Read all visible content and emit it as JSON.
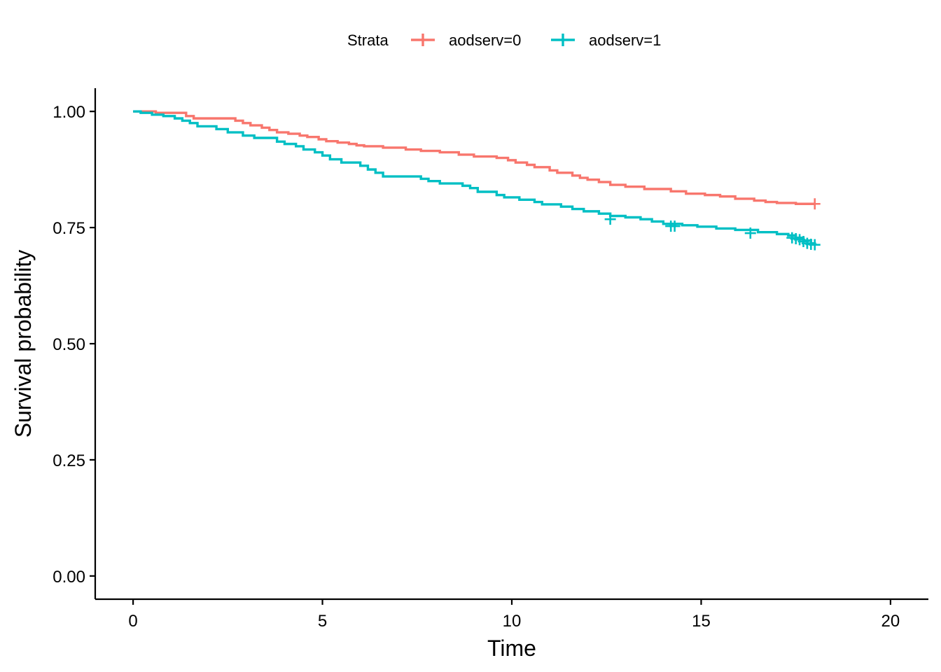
{
  "chart_data": {
    "type": "line",
    "step": true,
    "xlabel": "Time",
    "ylabel": "Survival probability",
    "xlim": [
      -1,
      21
    ],
    "ylim": [
      -0.05,
      1.05
    ],
    "xticks": [
      0,
      5,
      10,
      15,
      20
    ],
    "yticks": [
      0.0,
      0.25,
      0.5,
      0.75,
      1.0
    ],
    "xtick_labels": [
      "0",
      "5",
      "10",
      "15",
      "20"
    ],
    "ytick_labels": [
      "0.00",
      "0.25",
      "0.50",
      "0.75",
      "1.00"
    ],
    "grid": false,
    "legend": {
      "title": "Strata",
      "position": "top"
    },
    "series": [
      {
        "name": "aodserv=0",
        "color": "#F8766D",
        "x": [
          0,
          0.6,
          1.4,
          1.6,
          2.7,
          2.9,
          3.1,
          3.4,
          3.6,
          3.8,
          4.1,
          4.4,
          4.6,
          4.9,
          5.1,
          5.4,
          5.7,
          5.9,
          6.1,
          6.6,
          7.2,
          7.6,
          8.1,
          8.6,
          9.0,
          9.6,
          9.9,
          10.1,
          10.4,
          10.6,
          11.0,
          11.2,
          11.6,
          11.8,
          12.0,
          12.3,
          12.6,
          13.0,
          13.5,
          14.2,
          14.6,
          15.1,
          15.5,
          15.9,
          16.4,
          16.7,
          17.0,
          17.5,
          18.0
        ],
        "y": [
          1.0,
          0.997,
          0.99,
          0.985,
          0.98,
          0.975,
          0.97,
          0.965,
          0.96,
          0.955,
          0.952,
          0.948,
          0.945,
          0.94,
          0.936,
          0.933,
          0.93,
          0.927,
          0.925,
          0.922,
          0.918,
          0.915,
          0.912,
          0.907,
          0.903,
          0.9,
          0.895,
          0.89,
          0.885,
          0.88,
          0.873,
          0.868,
          0.862,
          0.857,
          0.853,
          0.848,
          0.842,
          0.838,
          0.833,
          0.828,
          0.823,
          0.82,
          0.817,
          0.812,
          0.808,
          0.805,
          0.803,
          0.801,
          0.801
        ],
        "censored": [
          [
            18.0,
            0.801
          ]
        ]
      },
      {
        "name": "aodserv=1",
        "color": "#00BFC4",
        "x": [
          0,
          0.2,
          0.5,
          0.8,
          1.1,
          1.3,
          1.5,
          1.7,
          2.2,
          2.5,
          2.9,
          3.2,
          3.8,
          4.0,
          4.3,
          4.5,
          4.8,
          5.0,
          5.2,
          5.5,
          6.0,
          6.2,
          6.4,
          6.6,
          7.6,
          7.8,
          8.1,
          8.7,
          8.9,
          9.1,
          9.6,
          9.8,
          10.2,
          10.6,
          10.8,
          11.3,
          11.6,
          11.9,
          12.3,
          12.6,
          13.0,
          13.4,
          13.7,
          14.0,
          14.5,
          14.9,
          15.4,
          15.9,
          16.5,
          17.0,
          17.3,
          17.5,
          17.7,
          17.9,
          18.0
        ],
        "y": [
          1.0,
          0.997,
          0.993,
          0.99,
          0.985,
          0.98,
          0.975,
          0.968,
          0.962,
          0.955,
          0.948,
          0.943,
          0.935,
          0.93,
          0.925,
          0.918,
          0.912,
          0.905,
          0.897,
          0.89,
          0.883,
          0.875,
          0.868,
          0.86,
          0.855,
          0.85,
          0.845,
          0.84,
          0.835,
          0.827,
          0.82,
          0.815,
          0.81,
          0.805,
          0.8,
          0.795,
          0.79,
          0.785,
          0.78,
          0.775,
          0.772,
          0.768,
          0.763,
          0.758,
          0.755,
          0.752,
          0.748,
          0.745,
          0.74,
          0.736,
          0.733,
          0.728,
          0.722,
          0.716,
          0.713
        ],
        "censored": [
          [
            12.6,
            0.768
          ],
          [
            14.2,
            0.753
          ],
          [
            14.3,
            0.753
          ],
          [
            16.3,
            0.738
          ],
          [
            17.4,
            0.728
          ],
          [
            17.5,
            0.726
          ],
          [
            17.6,
            0.724
          ],
          [
            17.7,
            0.72
          ],
          [
            17.8,
            0.716
          ],
          [
            17.9,
            0.714
          ],
          [
            18.0,
            0.713
          ]
        ]
      }
    ]
  }
}
